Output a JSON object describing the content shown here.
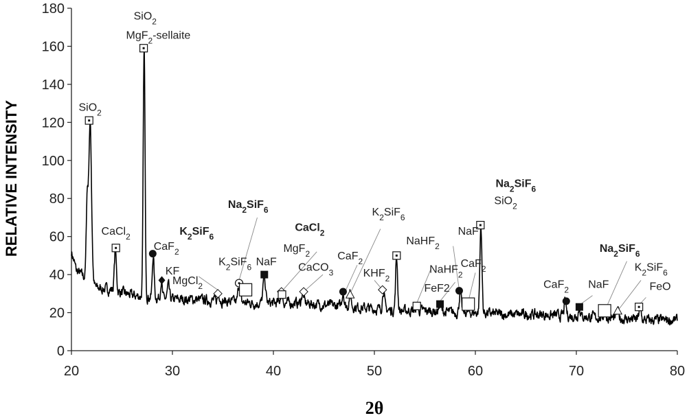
{
  "chart_data": {
    "type": "line",
    "xlabel": "2θ",
    "ylabel": "RELATIVE INTENSITY",
    "xlim": [
      20,
      80
    ],
    "ylim": [
      0,
      180
    ],
    "x_ticks": [
      "20",
      "30",
      "40",
      "50",
      "60",
      "70",
      "80"
    ],
    "y_ticks": [
      "0",
      "20",
      "40",
      "60",
      "80",
      "100",
      "120",
      "140",
      "160",
      "180"
    ],
    "grid": false,
    "line_color": "#000000",
    "baseline": [
      [
        20,
        52
      ],
      [
        20.5,
        42
      ],
      [
        21,
        40
      ],
      [
        22.5,
        33
      ],
      [
        24,
        32
      ],
      [
        26,
        29
      ],
      [
        28,
        28
      ],
      [
        30,
        27
      ],
      [
        32,
        27
      ],
      [
        35,
        26
      ],
      [
        38,
        25
      ],
      [
        40,
        25
      ],
      [
        43,
        25
      ],
      [
        45,
        24
      ],
      [
        48,
        23
      ],
      [
        50,
        22
      ],
      [
        52,
        21
      ],
      [
        55,
        21
      ],
      [
        58,
        20
      ],
      [
        60,
        20
      ],
      [
        63,
        19
      ],
      [
        66,
        19
      ],
      [
        70,
        18
      ],
      [
        74,
        17
      ],
      [
        77,
        16
      ],
      [
        80,
        16
      ]
    ],
    "peaks": [
      {
        "x": 21.55,
        "h": 76,
        "w": 0.09
      },
      {
        "x": 21.85,
        "h": 120,
        "w": 0.14
      },
      {
        "x": 24.35,
        "h": 53,
        "w": 0.1
      },
      {
        "x": 27.2,
        "h": 160,
        "w": 0.09
      },
      {
        "x": 28.1,
        "h": 50,
        "w": 0.09
      },
      {
        "x": 28.9,
        "h": 37,
        "w": 0.08
      },
      {
        "x": 29.6,
        "h": 34,
        "w": 0.1
      },
      {
        "x": 34.6,
        "h": 30,
        "w": 0.1
      },
      {
        "x": 36.6,
        "h": 35,
        "w": 0.1
      },
      {
        "x": 39.1,
        "h": 39,
        "w": 0.12
      },
      {
        "x": 40.8,
        "h": 31,
        "w": 0.1
      },
      {
        "x": 42.9,
        "h": 31,
        "w": 0.1
      },
      {
        "x": 46.9,
        "h": 31,
        "w": 0.1
      },
      {
        "x": 47.6,
        "h": 30,
        "w": 0.1
      },
      {
        "x": 50.9,
        "h": 32,
        "w": 0.1
      },
      {
        "x": 52.2,
        "h": 49,
        "w": 0.1
      },
      {
        "x": 54.2,
        "h": 23,
        "w": 0.1
      },
      {
        "x": 56.5,
        "h": 25,
        "w": 0.1
      },
      {
        "x": 58.5,
        "h": 31,
        "w": 0.1
      },
      {
        "x": 60.55,
        "h": 66,
        "w": 0.1
      },
      {
        "x": 68.9,
        "h": 26,
        "w": 0.1
      },
      {
        "x": 70.3,
        "h": 23,
        "w": 0.1
      },
      {
        "x": 72.8,
        "h": 20,
        "w": 0.1
      },
      {
        "x": 74.1,
        "h": 21,
        "w": 0.1
      },
      {
        "x": 76.3,
        "h": 23,
        "w": 0.1
      }
    ],
    "markers": [
      {
        "x": 21.75,
        "y": 121,
        "shape": "square-dot"
      },
      {
        "x": 24.4,
        "y": 54,
        "shape": "square-dot"
      },
      {
        "x": 27.15,
        "y": 159,
        "shape": "square-dot"
      },
      {
        "x": 28.05,
        "y": 51,
        "shape": "circle-filled"
      },
      {
        "x": 28.95,
        "y": 37,
        "shape": "diamond-filled"
      },
      {
        "x": 34.5,
        "y": 30,
        "shape": "diamond-open"
      },
      {
        "x": 36.6,
        "y": 35.5,
        "shape": "circle-dot"
      },
      {
        "x": 37.25,
        "y": 32,
        "shape": "square-open-large"
      },
      {
        "x": 39.1,
        "y": 40,
        "shape": "square-filled"
      },
      {
        "x": 40.8,
        "y": 31,
        "shape": "diamond-open"
      },
      {
        "x": 40.85,
        "y": 29.5,
        "shape": "square-open"
      },
      {
        "x": 43.0,
        "y": 31,
        "shape": "diamond-open"
      },
      {
        "x": 46.9,
        "y": 31,
        "shape": "circle-filled"
      },
      {
        "x": 47.6,
        "y": 29.5,
        "shape": "triangle-open"
      },
      {
        "x": 50.8,
        "y": 32,
        "shape": "diamond-open"
      },
      {
        "x": 52.2,
        "y": 50,
        "shape": "square-dot"
      },
      {
        "x": 54.2,
        "y": 23.5,
        "shape": "square-open"
      },
      {
        "x": 56.5,
        "y": 24.5,
        "shape": "square-filled"
      },
      {
        "x": 58.4,
        "y": 31.5,
        "shape": "circle-filled"
      },
      {
        "x": 59.3,
        "y": 24.5,
        "shape": "square-open-large"
      },
      {
        "x": 60.5,
        "y": 66,
        "shape": "square-dot"
      },
      {
        "x": 69.0,
        "y": 26,
        "shape": "circle-filled"
      },
      {
        "x": 70.3,
        "y": 23,
        "shape": "square-filled"
      },
      {
        "x": 72.8,
        "y": 21,
        "shape": "square-open-large"
      },
      {
        "x": 74.1,
        "y": 21,
        "shape": "triangle-open"
      },
      {
        "x": 76.2,
        "y": 23,
        "shape": "square-dot"
      }
    ],
    "annotations": [
      {
        "key": "sio2-top",
        "base": "SiO",
        "sub": "2",
        "tail": "",
        "x": 27.3,
        "y": 174,
        "bold": false
      },
      {
        "key": "mgf2-sellaite",
        "base": "MgF",
        "sub": "2",
        "tail": "-sellaite",
        "x": 28.6,
        "y": 164,
        "bold": false
      },
      {
        "x": 21.85,
        "y": 126,
        "bold": false,
        "key": "sio2-left",
        "base": "SiO",
        "sub": "2",
        "tail": ""
      },
      {
        "x": 24.4,
        "y": 61,
        "bold": false,
        "key": "cacl2-left",
        "base": "CaCl",
        "sub": "2",
        "tail": ""
      },
      {
        "x": 29.4,
        "y": 53,
        "bold": false,
        "key": "caf2-left",
        "base": "CaF",
        "sub": "2",
        "tail": ""
      },
      {
        "x": 30.0,
        "y": 40,
        "bold": false,
        "key": "kf",
        "base": "KF",
        "sub": "",
        "tail": ""
      },
      {
        "x": 31.5,
        "y": 35,
        "bold": false,
        "key": "mgcl2",
        "base": "MgCl",
        "sub": "2",
        "tail": ""
      },
      {
        "x": 32.4,
        "y": 61,
        "bold": true,
        "key": "k2sif6-bold",
        "base": "K",
        "sub": "2",
        "tail": "SiF",
        "sub2": "6"
      },
      {
        "x": 36.2,
        "y": 45,
        "bold": false,
        "key": "k2sif6-mid",
        "base": "K",
        "sub": "2",
        "tail": "SiF",
        "sub2": "6"
      },
      {
        "x": 37.5,
        "y": 75,
        "bold": true,
        "key": "na2sif6-mid",
        "base": "Na",
        "sub": "2",
        "tail": "SiF",
        "sub2": "6"
      },
      {
        "x": 39.3,
        "y": 45,
        "bold": false,
        "key": "naf-mid",
        "base": "NaF",
        "sub": "",
        "tail": ""
      },
      {
        "x": 43.6,
        "y": 63,
        "bold": true,
        "key": "cacl2-bold",
        "base": "CaCl",
        "sub": "2",
        "tail": ""
      },
      {
        "x": 42.3,
        "y": 52,
        "bold": false,
        "key": "mgf2-mid",
        "base": "MgF",
        "sub": "2",
        "tail": ""
      },
      {
        "x": 44.2,
        "y": 42,
        "bold": false,
        "key": "caco3",
        "base": "CaCO",
        "sub": "3",
        "tail": ""
      },
      {
        "x": 47.6,
        "y": 48,
        "bold": false,
        "key": "caf2-mid",
        "base": "CaF",
        "sub": "2",
        "tail": ""
      },
      {
        "x": 51.4,
        "y": 71,
        "bold": false,
        "key": "k2sif6-right",
        "base": "K",
        "sub": "2",
        "tail": "SiF",
        "sub2": "6"
      },
      {
        "x": 50.2,
        "y": 39,
        "bold": false,
        "key": "khf2",
        "base": "KHF",
        "sub": "2",
        "tail": ""
      },
      {
        "x": 54.8,
        "y": 56,
        "bold": false,
        "key": "nahf2-top",
        "base": "NaHF",
        "sub": "2",
        "tail": ""
      },
      {
        "x": 57.1,
        "y": 41,
        "bold": false,
        "key": "nahf2-bottom",
        "base": "NaHF",
        "sub": "2",
        "tail": ""
      },
      {
        "x": 56.2,
        "y": 31,
        "bold": false,
        "key": "fef2",
        "base": "FeF2",
        "sub": "",
        "tail": ""
      },
      {
        "x": 59.3,
        "y": 61,
        "bold": false,
        "key": "naf-right",
        "base": "NaF",
        "sub": "",
        "tail": ""
      },
      {
        "x": 59.8,
        "y": 44,
        "bold": false,
        "key": "caf2-right",
        "base": "CaF",
        "sub": "2",
        "tail": ""
      },
      {
        "x": 64.0,
        "y": 86,
        "bold": true,
        "key": "na2sif6-right",
        "base": "Na",
        "sub": "2",
        "tail": "SiF",
        "sub2": "6"
      },
      {
        "x": 63.0,
        "y": 77,
        "bold": false,
        "key": "sio2-right",
        "base": "SiO",
        "sub": "2",
        "tail": ""
      },
      {
        "x": 68.0,
        "y": 33,
        "bold": false,
        "key": "caf2-far",
        "base": "CaF",
        "sub": "2",
        "tail": ""
      },
      {
        "x": 72.2,
        "y": 33,
        "bold": false,
        "key": "naf-far",
        "base": "NaF",
        "sub": "",
        "tail": ""
      },
      {
        "x": 74.3,
        "y": 52,
        "bold": true,
        "key": "na2sif6-far",
        "base": "Na",
        "sub": "2",
        "tail": "SiF",
        "sub2": "6"
      },
      {
        "x": 77.4,
        "y": 42,
        "bold": false,
        "key": "k2sif6-far",
        "base": "K",
        "sub": "2",
        "tail": "SiF",
        "sub2": "6"
      },
      {
        "x": 78.3,
        "y": 32,
        "bold": false,
        "key": "feo",
        "base": "FeO",
        "sub": "",
        "tail": ""
      }
    ],
    "leaders": [
      [
        [
          34.6,
          31.5
        ],
        [
          32.6,
          39
        ]
      ],
      [
        [
          36.6,
          37
        ],
        [
          38.4,
          70
        ]
      ],
      [
        [
          40.8,
          31
        ],
        [
          44.3,
          52
        ]
      ],
      [
        [
          43.0,
          31
        ],
        [
          44.9,
          40
        ]
      ],
      [
        [
          47.1,
          31
        ],
        [
          48.3,
          45
        ]
      ],
      [
        [
          47.6,
          30
        ],
        [
          50.6,
          64
        ]
      ],
      [
        [
          50.8,
          32
        ],
        [
          50.0,
          37
        ]
      ],
      [
        [
          54.2,
          25
        ],
        [
          55.6,
          43
        ]
      ],
      [
        [
          58.4,
          32
        ],
        [
          57.8,
          55
        ]
      ],
      [
        [
          56.5,
          26
        ],
        [
          58.0,
          36
        ]
      ],
      [
        [
          59.3,
          26
        ],
        [
          60.0,
          41
        ]
      ],
      [
        [
          70.3,
          24
        ],
        [
          71.6,
          29
        ]
      ],
      [
        [
          72.9,
          22
        ],
        [
          75.0,
          47
        ]
      ],
      [
        [
          74.1,
          21
        ],
        [
          76.4,
          37
        ]
      ],
      [
        [
          76.2,
          24
        ],
        [
          76.9,
          28
        ]
      ]
    ]
  }
}
